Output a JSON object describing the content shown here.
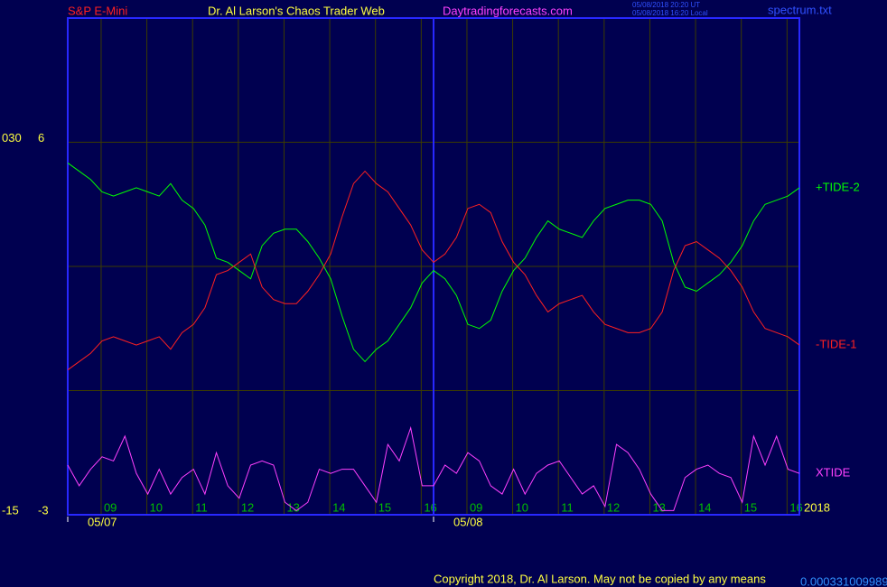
{
  "chart_data": {
    "type": "line",
    "header": {
      "instrument": "S&P E-Mini",
      "site": "Dr. Al Larson's Chaos Trader Web",
      "url": "Daytradingforecasts.com",
      "timestamp_ut": "05/08/2018 20:20 UT",
      "timestamp_local": "05/08/2018 16:20 Local",
      "file": "spectrum.txt"
    },
    "year_label": "2018",
    "footer": {
      "copyright": "Copyright 2018, Dr. Al Larson. May not be copied by any means",
      "code": "0.000331009989"
    },
    "x": [
      0,
      0.25,
      0.5,
      0.75,
      1,
      1.25,
      1.5,
      1.75,
      2,
      2.25,
      2.5,
      2.75,
      3,
      3.25,
      3.5,
      3.75,
      4,
      4.25,
      4.5,
      4.75,
      5,
      5.25,
      5.5,
      5.75,
      6,
      6.25,
      6.5,
      6.75,
      7,
      7.25,
      7.5,
      7.75,
      8,
      8.25,
      8.5,
      8.75,
      9,
      9.25,
      9.5,
      9.75,
      10,
      10.25,
      10.5,
      10.75,
      11,
      11.25,
      11.5,
      11.75,
      12,
      12.25,
      12.5,
      12.75,
      13,
      13.25,
      13.5,
      13.75,
      14,
      14.25,
      14.5,
      14.75,
      15,
      15.25,
      15.5,
      15.75,
      16
    ],
    "xlim": [
      0,
      16
    ],
    "xticks": [
      {
        "value": 0.73,
        "label": "09"
      },
      {
        "value": 1.73,
        "label": "10"
      },
      {
        "value": 2.73,
        "label": "11"
      },
      {
        "value": 3.73,
        "label": "12"
      },
      {
        "value": 4.73,
        "label": "13"
      },
      {
        "value": 5.73,
        "label": "14"
      },
      {
        "value": 6.73,
        "label": "15"
      },
      {
        "value": 7.73,
        "label": "16"
      },
      {
        "value": 8.73,
        "label": "09"
      },
      {
        "value": 9.73,
        "label": "10"
      },
      {
        "value": 10.73,
        "label": "11"
      },
      {
        "value": 11.73,
        "label": "12"
      },
      {
        "value": 12.73,
        "label": "13"
      },
      {
        "value": 13.73,
        "label": "14"
      },
      {
        "value": 14.73,
        "label": "15"
      },
      {
        "value": 15.73,
        "label": "16"
      }
    ],
    "date_ticks": [
      {
        "value": 0,
        "label": "05/07"
      },
      {
        "value": 8,
        "label": "05/08"
      }
    ],
    "ylim": [
      -3,
      9
    ],
    "yticks": [
      -3,
      {
        "value": 0,
        "label": null
      },
      {
        "value": 3,
        "label": null
      },
      6
    ],
    "y2lim": [
      -15,
      45
    ],
    "y2ticks": [
      -15,
      {
        "value": 30,
        "label": "030"
      }
    ],
    "grid": true,
    "series": [
      {
        "name": "+TIDE-2",
        "color": "#00ff00",
        "values": [
          5.5,
          5.3,
          5.1,
          4.8,
          4.7,
          4.8,
          4.9,
          4.8,
          4.7,
          5.0,
          4.6,
          4.4,
          4.0,
          3.2,
          3.1,
          2.9,
          2.7,
          3.5,
          3.8,
          3.9,
          3.9,
          3.6,
          3.2,
          2.7,
          1.8,
          1.0,
          0.7,
          1.0,
          1.2,
          1.6,
          2.0,
          2.6,
          2.9,
          2.7,
          2.3,
          1.6,
          1.5,
          1.7,
          2.4,
          2.9,
          3.2,
          3.7,
          4.1,
          3.9,
          3.8,
          3.7,
          4.1,
          4.4,
          4.5,
          4.6,
          4.6,
          4.5,
          4.1,
          3.1,
          2.5,
          2.4,
          2.6,
          2.8,
          3.1,
          3.5,
          4.1,
          4.5,
          4.6,
          4.7,
          4.9
        ]
      },
      {
        "name": "-TIDE-1",
        "color": "#ff2020",
        "values": [
          0.5,
          0.7,
          0.9,
          1.2,
          1.3,
          1.2,
          1.1,
          1.2,
          1.3,
          1.0,
          1.4,
          1.6,
          2.0,
          2.8,
          2.9,
          3.1,
          3.3,
          2.5,
          2.2,
          2.1,
          2.1,
          2.4,
          2.8,
          3.3,
          4.2,
          5.0,
          5.3,
          5.0,
          4.8,
          4.4,
          4.0,
          3.4,
          3.1,
          3.3,
          3.7,
          4.4,
          4.5,
          4.3,
          3.6,
          3.1,
          2.8,
          2.3,
          1.9,
          2.1,
          2.2,
          2.3,
          1.9,
          1.6,
          1.5,
          1.4,
          1.4,
          1.5,
          1.9,
          2.9,
          3.5,
          3.6,
          3.4,
          3.2,
          2.9,
          2.5,
          1.9,
          1.5,
          1.4,
          1.3,
          1.1
        ]
      },
      {
        "name": "XTIDE",
        "color": "#ff40ff",
        "values": [
          -1.8,
          -2.3,
          -1.9,
          -1.6,
          -1.7,
          -1.1,
          -2.0,
          -2.5,
          -1.9,
          -2.5,
          -2.1,
          -1.9,
          -2.5,
          -1.5,
          -2.3,
          -2.6,
          -1.8,
          -1.7,
          -1.8,
          -2.7,
          -2.9,
          -2.7,
          -1.9,
          -2.0,
          -1.9,
          -1.9,
          -2.3,
          -2.7,
          -1.3,
          -1.7,
          -0.9,
          -2.3,
          -2.3,
          -1.8,
          -2.0,
          -1.5,
          -1.7,
          -2.3,
          -2.5,
          -1.9,
          -2.5,
          -2.0,
          -1.8,
          -1.7,
          -2.1,
          -2.5,
          -2.3,
          -2.8,
          -1.3,
          -1.5,
          -1.9,
          -2.5,
          -2.9,
          -2.9,
          -2.1,
          -1.9,
          -1.8,
          -2.0,
          -2.1,
          -2.7,
          -1.1,
          -1.8,
          -1.1,
          -1.9,
          -2.0
        ]
      }
    ]
  }
}
